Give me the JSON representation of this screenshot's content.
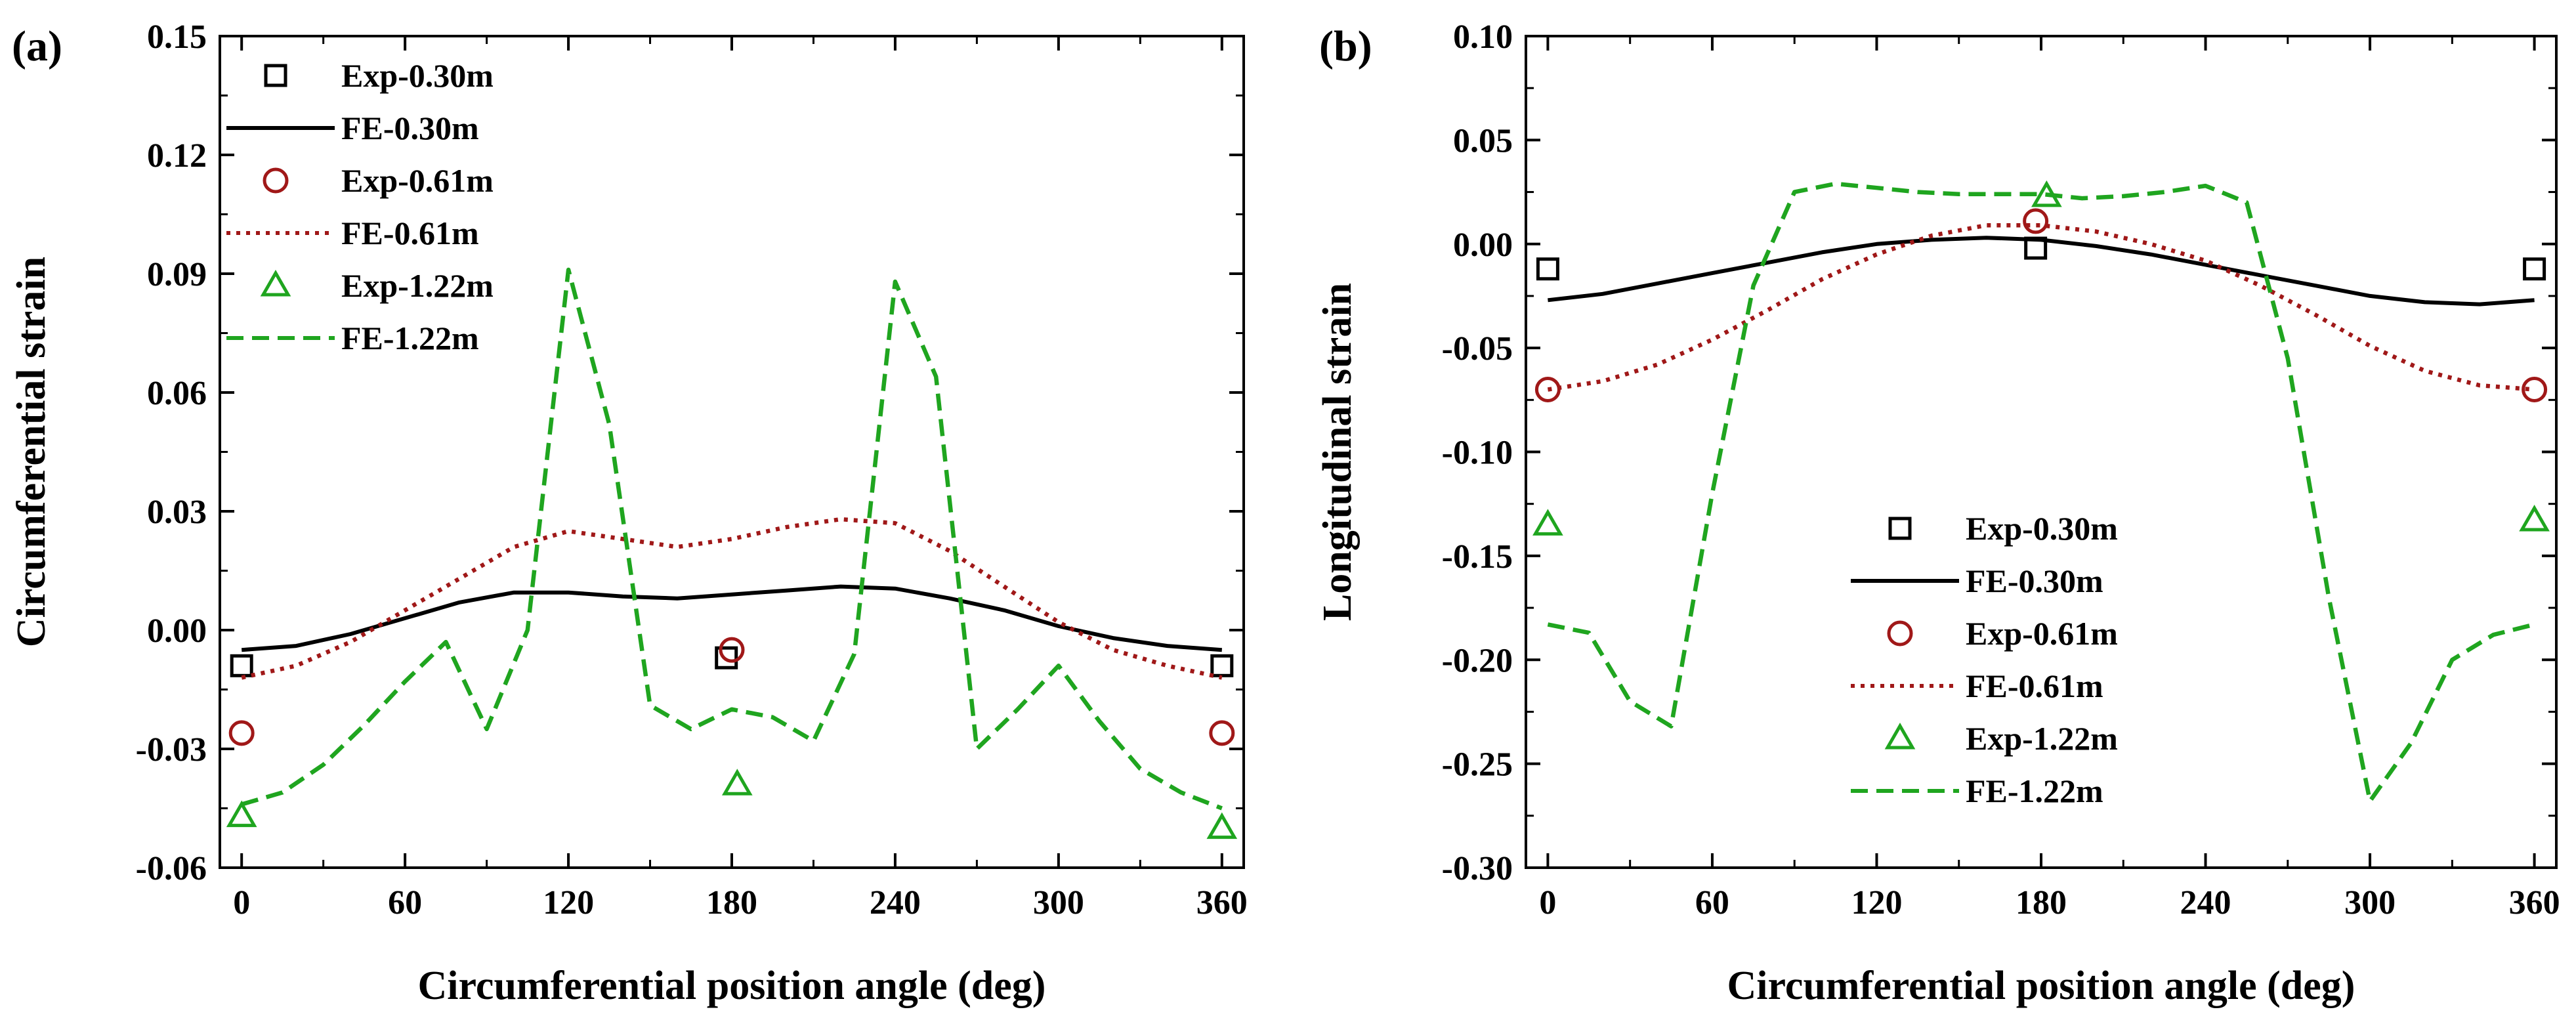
{
  "chart_data": [
    {
      "type": "line",
      "panel_label": "(a)",
      "xlabel": "Circumferential position angle (deg)",
      "ylabel": "Circumferential strain",
      "xlim": [
        -8,
        368
      ],
      "ylim": [
        -0.06,
        0.15
      ],
      "xticks": [
        0,
        60,
        120,
        180,
        240,
        300,
        360
      ],
      "xtick_labels": [
        "0",
        "60",
        "120",
        "180",
        "240",
        "300",
        "360"
      ],
      "yticks": [
        -0.06,
        -0.03,
        0.0,
        0.03,
        0.06,
        0.09,
        0.12,
        0.15
      ],
      "ytick_labels": [
        "-0.06",
        "-0.03",
        "0.00",
        "0.03",
        "0.06",
        "0.09",
        "0.12",
        "0.15"
      ],
      "legend_position": "top-left",
      "series": [
        {
          "name": "Exp-0.30m",
          "kind": "marker",
          "marker": "square",
          "color": "#000000",
          "x": [
            0,
            178,
            360
          ],
          "y": [
            -0.009,
            -0.007,
            -0.009
          ]
        },
        {
          "name": "FE-0.30m",
          "kind": "line",
          "style": "solid",
          "color": "#000000",
          "x": [
            0,
            20,
            40,
            60,
            80,
            100,
            120,
            140,
            160,
            180,
            200,
            220,
            240,
            260,
            280,
            300,
            320,
            340,
            360
          ],
          "y": [
            -0.005,
            -0.004,
            -0.001,
            0.003,
            0.007,
            0.0095,
            0.0095,
            0.0085,
            0.008,
            0.009,
            0.01,
            0.011,
            0.0105,
            0.008,
            0.005,
            0.001,
            -0.002,
            -0.004,
            -0.005
          ]
        },
        {
          "name": "Exp-0.61m",
          "kind": "marker",
          "marker": "circle",
          "color": "#a01818",
          "x": [
            0,
            180,
            360
          ],
          "y": [
            -0.026,
            -0.005,
            -0.026
          ]
        },
        {
          "name": "FE-0.61m",
          "kind": "line",
          "style": "dotted",
          "color": "#a01818",
          "x": [
            0,
            20,
            40,
            60,
            80,
            100,
            120,
            140,
            160,
            180,
            200,
            220,
            240,
            260,
            280,
            300,
            320,
            340,
            360
          ],
          "y": [
            -0.012,
            -0.009,
            -0.003,
            0.005,
            0.013,
            0.021,
            0.025,
            0.023,
            0.021,
            0.023,
            0.026,
            0.028,
            0.027,
            0.02,
            0.011,
            0.002,
            -0.005,
            -0.009,
            -0.012
          ]
        },
        {
          "name": "Exp-1.22m",
          "kind": "marker",
          "marker": "triangle",
          "color": "#1fa51f",
          "x": [
            0,
            182,
            360
          ],
          "y": [
            -0.047,
            -0.039,
            -0.05
          ]
        },
        {
          "name": "FE-1.22m",
          "kind": "line",
          "style": "dashed",
          "color": "#1fa51f",
          "x": [
            0,
            15,
            30,
            45,
            60,
            75,
            90,
            105,
            120,
            135,
            150,
            165,
            180,
            195,
            210,
            225,
            240,
            255,
            270,
            285,
            300,
            315,
            330,
            345,
            360
          ],
          "y": [
            -0.044,
            -0.041,
            -0.034,
            -0.024,
            -0.013,
            -0.003,
            -0.025,
            0.0,
            0.091,
            0.052,
            -0.019,
            -0.025,
            -0.02,
            -0.022,
            -0.028,
            -0.006,
            0.088,
            0.064,
            -0.03,
            -0.02,
            -0.009,
            -0.023,
            -0.035,
            -0.041,
            -0.045
          ]
        }
      ]
    },
    {
      "type": "line",
      "panel_label": "(b)",
      "xlabel": "Circumferential position angle (deg)",
      "ylabel": "Longitudinal strain",
      "xlim": [
        -8,
        368
      ],
      "ylim": [
        -0.3,
        0.1
      ],
      "xticks": [
        0,
        60,
        120,
        180,
        240,
        300,
        360
      ],
      "xtick_labels": [
        "0",
        "60",
        "120",
        "180",
        "240",
        "300",
        "360"
      ],
      "yticks": [
        -0.3,
        -0.25,
        -0.2,
        -0.15,
        -0.1,
        -0.05,
        0.0,
        0.05,
        0.1
      ],
      "ytick_labels": [
        "-0.30",
        "-0.25",
        "-0.20",
        "-0.15",
        "-0.10",
        "-0.05",
        "0.00",
        "0.05",
        "0.10"
      ],
      "legend_position": "bottom-center",
      "series": [
        {
          "name": "Exp-0.30m",
          "kind": "marker",
          "marker": "square",
          "color": "#000000",
          "x": [
            0,
            178,
            360
          ],
          "y": [
            -0.012,
            -0.002,
            -0.012
          ]
        },
        {
          "name": "FE-0.30m",
          "kind": "line",
          "style": "solid",
          "color": "#000000",
          "x": [
            0,
            20,
            40,
            60,
            80,
            100,
            120,
            140,
            160,
            180,
            200,
            220,
            240,
            260,
            280,
            300,
            320,
            340,
            360
          ],
          "y": [
            -0.027,
            -0.024,
            -0.019,
            -0.014,
            -0.009,
            -0.004,
            0.0,
            0.002,
            0.003,
            0.002,
            -0.001,
            -0.005,
            -0.01,
            -0.015,
            -0.02,
            -0.025,
            -0.028,
            -0.029,
            -0.027
          ]
        },
        {
          "name": "Exp-0.61m",
          "kind": "marker",
          "marker": "circle",
          "color": "#a01818",
          "x": [
            0,
            178,
            360
          ],
          "y": [
            -0.07,
            0.011,
            -0.07
          ]
        },
        {
          "name": "FE-0.61m",
          "kind": "line",
          "style": "dotted",
          "color": "#a01818",
          "x": [
            0,
            20,
            40,
            60,
            80,
            100,
            120,
            140,
            160,
            180,
            200,
            220,
            240,
            260,
            280,
            300,
            320,
            340,
            360
          ],
          "y": [
            -0.07,
            -0.066,
            -0.058,
            -0.046,
            -0.032,
            -0.017,
            -0.005,
            0.004,
            0.009,
            0.009,
            0.006,
            0.0,
            -0.008,
            -0.02,
            -0.034,
            -0.049,
            -0.061,
            -0.068,
            -0.07
          ]
        },
        {
          "name": "Exp-1.22m",
          "kind": "marker",
          "marker": "triangle",
          "color": "#1fa51f",
          "x": [
            0,
            182,
            360
          ],
          "y": [
            -0.135,
            0.023,
            -0.133
          ]
        },
        {
          "name": "FE-1.22m",
          "kind": "line",
          "style": "dashed",
          "color": "#1fa51f",
          "x": [
            0,
            15,
            30,
            45,
            60,
            75,
            90,
            105,
            120,
            135,
            150,
            165,
            180,
            195,
            210,
            225,
            240,
            255,
            270,
            285,
            300,
            315,
            330,
            345,
            360
          ],
          "y": [
            -0.183,
            -0.187,
            -0.22,
            -0.232,
            -0.12,
            -0.02,
            0.025,
            0.029,
            0.027,
            0.025,
            0.024,
            0.024,
            0.024,
            0.022,
            0.023,
            0.025,
            0.028,
            0.02,
            -0.055,
            -0.17,
            -0.268,
            -0.24,
            -0.2,
            -0.188,
            -0.183
          ]
        }
      ]
    }
  ]
}
